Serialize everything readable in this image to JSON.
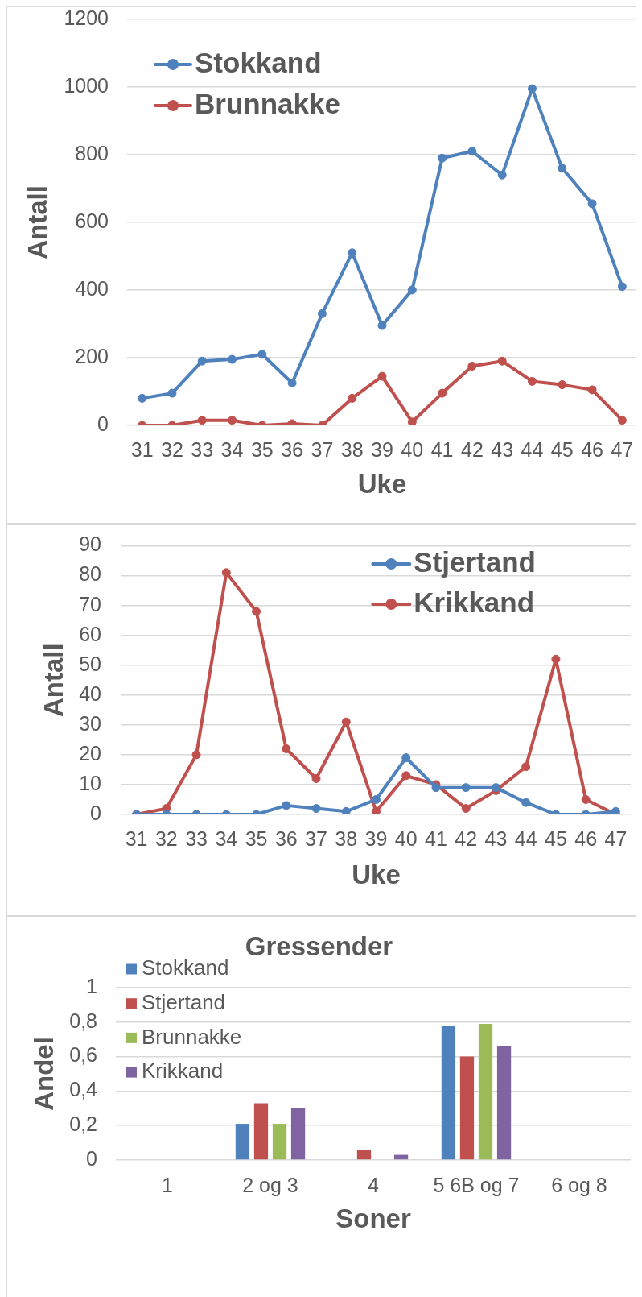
{
  "chart_data": [
    {
      "type": "line",
      "categories": [
        "31",
        "32",
        "33",
        "34",
        "35",
        "36",
        "37",
        "38",
        "39",
        "40",
        "41",
        "42",
        "43",
        "44",
        "45",
        "46",
        "47"
      ],
      "series": [
        {
          "name": "Stokkand",
          "color": "#4f81bd",
          "values": [
            80,
            95,
            190,
            195,
            210,
            125,
            330,
            510,
            295,
            400,
            790,
            810,
            740,
            995,
            760,
            655,
            410
          ]
        },
        {
          "name": "Brunnakke",
          "color": "#c0504d",
          "values": [
            0,
            0,
            15,
            15,
            0,
            5,
            0,
            80,
            145,
            10,
            95,
            175,
            190,
            130,
            120,
            105,
            15
          ]
        }
      ],
      "xlabel": "Uke",
      "ylabel": "Antall",
      "ylim": [
        0,
        1200
      ],
      "yticks": [
        0,
        200,
        400,
        600,
        800,
        1000,
        1200
      ],
      "grid": "y",
      "legend": "top left",
      "marker": "circle",
      "line_style": "solid"
    },
    {
      "type": "line",
      "categories": [
        "31",
        "32",
        "33",
        "34",
        "35",
        "36",
        "37",
        "38",
        "39",
        "40",
        "41",
        "42",
        "43",
        "44",
        "45",
        "46",
        "47"
      ],
      "series": [
        {
          "name": "Stjertand",
          "color": "#4f81bd",
          "values": [
            0,
            0,
            0,
            0,
            0,
            3,
            2,
            1,
            5,
            19,
            9,
            9,
            9,
            4,
            0,
            0,
            1
          ]
        },
        {
          "name": "Krikkand",
          "color": "#c0504d",
          "values": [
            0,
            2,
            20,
            81,
            68,
            22,
            12,
            31,
            1,
            13,
            10,
            2,
            8,
            16,
            52,
            5,
            0
          ]
        }
      ],
      "xlabel": "Uke",
      "ylabel": "Antall",
      "ylim": [
        0,
        90
      ],
      "yticks": [
        0,
        10,
        20,
        30,
        40,
        50,
        60,
        70,
        80,
        90
      ],
      "grid": "y",
      "legend": "top right",
      "marker": "circle",
      "line_style": "solid"
    },
    {
      "type": "bar",
      "title": "Gressender",
      "categories": [
        "1",
        "2 og 3",
        "4",
        "5 6B og 7",
        "6 og 8"
      ],
      "series": [
        {
          "name": "Stokkand",
          "color": "#4f81bd",
          "values": [
            0,
            0.21,
            0,
            0.78,
            0
          ]
        },
        {
          "name": "Stjertand",
          "color": "#c0504d",
          "values": [
            0,
            0.33,
            0.06,
            0.6,
            0
          ]
        },
        {
          "name": "Brunnakke",
          "color": "#9bbb59",
          "values": [
            0,
            0.21,
            0,
            0.79,
            0
          ]
        },
        {
          "name": "Krikkand",
          "color": "#8064a2",
          "values": [
            0,
            0.3,
            0.03,
            0.66,
            0
          ]
        }
      ],
      "xlabel": "Soner",
      "ylabel": "Andel",
      "ylim": [
        0,
        1
      ],
      "yticks": [
        0,
        {
          "value": 0.2,
          "label": "0,2"
        },
        {
          "value": 0.4,
          "label": "0,4"
        },
        {
          "value": 0.6,
          "label": "0,6"
        },
        {
          "value": 0.8,
          "label": "0,8"
        },
        1
      ],
      "grid": "y",
      "legend": "top left"
    }
  ]
}
